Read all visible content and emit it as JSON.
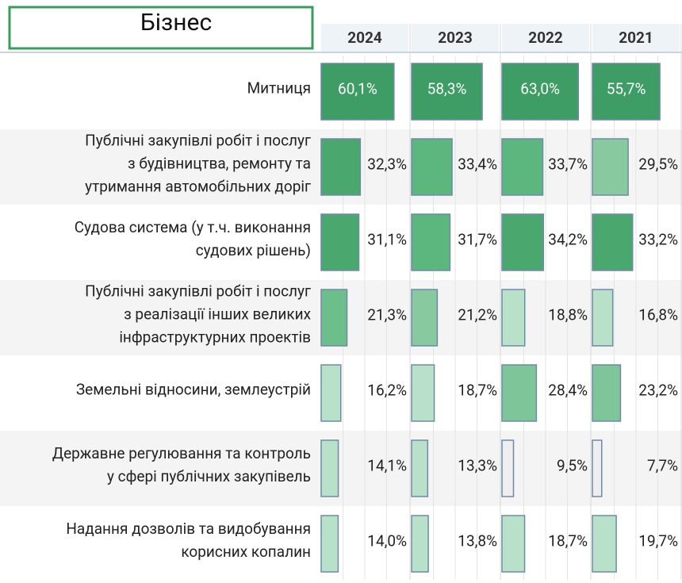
{
  "chart_data": {
    "type": "bar",
    "title": "Бізнес",
    "categories": [
      "Митниця",
      "Публічні закупівлі робіт і послуг з будівництва, ремонту та утримання автомобільних доріг",
      "Судова система (у т.ч. виконання судових рішень)",
      "Публічні закупівлі робіт і послуг з реалізації інших великих інфраструктурних проектів",
      "Земельні відносини, землеустрій",
      "Державне регулювання та контроль у сфері публічних закупівель",
      "Надання дозволів та видобування корисних копалин"
    ],
    "series": [
      {
        "name": "2024",
        "values": [
          60.1,
          32.3,
          31.1,
          21.3,
          16.2,
          14.1,
          14.0
        ],
        "value_labels": [
          "60,1%",
          "32,3%",
          "31,1%",
          "21,3%",
          "16,2%",
          "14,1%",
          "14,0%"
        ],
        "colors": [
          "#3d9d64",
          "#4aa86f",
          "#4aa86f",
          "#6cbf8a",
          "#b9e0c8",
          "#b9e0c8",
          "#b9e0c8"
        ]
      },
      {
        "name": "2023",
        "values": [
          58.3,
          33.4,
          31.7,
          21.2,
          18.7,
          13.3,
          13.8
        ],
        "value_labels": [
          "58,3%",
          "33,4%",
          "31,7%",
          "21,2%",
          "18,7%",
          "13,3%",
          "13,8%"
        ],
        "colors": [
          "#3d9d64",
          "#5cb77f",
          "#5cb77f",
          "#88c9a0",
          "#b9e0c8",
          "#b9e0c8",
          "#b9e0c8"
        ]
      },
      {
        "name": "2022",
        "values": [
          63.0,
          33.7,
          34.2,
          18.8,
          28.4,
          9.5,
          18.7
        ],
        "value_labels": [
          "63,0%",
          "33,7%",
          "34,2%",
          "18,8%",
          "28,4%",
          "9,5%",
          "18,7%"
        ],
        "colors": [
          "#3d9d64",
          "#5cb77f",
          "#4aa86f",
          "#b9e0c8",
          "#7fc59a",
          "#eeeeee",
          "#b9e0c8"
        ]
      },
      {
        "name": "2021",
        "values": [
          55.7,
          29.5,
          33.2,
          16.8,
          23.2,
          7.7,
          19.7
        ],
        "value_labels": [
          "55,7%",
          "29,5%",
          "33,2%",
          "16,8%",
          "23,2%",
          "7,7%",
          "19,7%"
        ],
        "colors": [
          "#3d9d64",
          "#88c9a0",
          "#4aa86f",
          "#b9e0c8",
          "#7fc59a",
          "#eeeeee",
          "#b9e0c8"
        ]
      }
    ],
    "xlim": [
      0,
      72
    ]
  }
}
